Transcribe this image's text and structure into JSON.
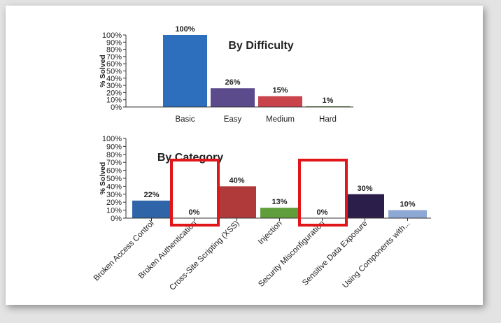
{
  "chart_data": [
    {
      "type": "bar",
      "title": "By Difficulty",
      "ylabel": "% Solved",
      "ylim": [
        0,
        100
      ],
      "yticks": [
        "0%",
        "10%",
        "20%",
        "30%",
        "40%",
        "50%",
        "60%",
        "70%",
        "80%",
        "90%",
        "100%"
      ],
      "categories": [
        "Basic",
        "Easy",
        "Medium",
        "Hard"
      ],
      "values": [
        100,
        26,
        15,
        1
      ],
      "labels": [
        "100%",
        "26%",
        "15%",
        "1%"
      ],
      "colors": [
        "#2e6fbd",
        "#5b4a8c",
        "#c9444a",
        "#6fa04a"
      ]
    },
    {
      "type": "bar",
      "title": "By Category",
      "ylabel": "% Solved",
      "ylim": [
        0,
        100
      ],
      "yticks": [
        "0%",
        "10%",
        "20%",
        "30%",
        "40%",
        "50%",
        "60%",
        "70%",
        "80%",
        "90%",
        "100%"
      ],
      "categories": [
        "Broken Access Control",
        "Broken Authentication",
        "Cross-Site Scripting (XSS)",
        "Injection",
        "Security Misconfiguration",
        "Sensitive Data Exposure",
        "Using Components with..."
      ],
      "values": [
        22,
        0,
        40,
        13,
        0,
        30,
        10
      ],
      "labels": [
        "22%",
        "0%",
        "40%",
        "13%",
        "0%",
        "30%",
        "10%"
      ],
      "colors": [
        "#2f64a8",
        "#b03a3a",
        "#b03a3a",
        "#5f9e3a",
        "#2f64a8",
        "#2c1e4a",
        "#8ea8d6"
      ],
      "highlighted": [
        "Broken Authentication",
        "Security Misconfiguration"
      ],
      "highlight_color": "#e0161b"
    }
  ]
}
